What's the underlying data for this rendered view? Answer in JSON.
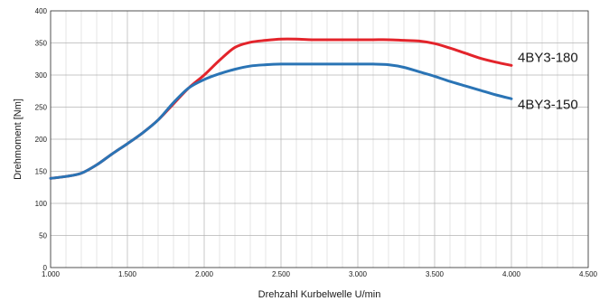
{
  "chart_data": {
    "type": "line",
    "xlabel": "Drehzahl Kurbelwelle U/min",
    "ylabel": "Drehmoment [Nm]",
    "xlim": [
      1000,
      4500
    ],
    "ylim": [
      0,
      400
    ],
    "x_ticks": [
      1000,
      1500,
      2000,
      2500,
      3000,
      3500,
      4000,
      4500
    ],
    "x_tick_labels": [
      "1.000",
      "1.500",
      "2.000",
      "2.500",
      "3.000",
      "3.500",
      "4.000",
      "4.500"
    ],
    "y_ticks": [
      0,
      50,
      100,
      150,
      200,
      250,
      300,
      350,
      400
    ],
    "y_tick_labels": [
      "0",
      "50",
      "100",
      "150",
      "200",
      "250",
      "300",
      "350",
      "400"
    ],
    "x_minor_step": 100,
    "grid": true,
    "series": [
      {
        "name": "4BY3-180",
        "color": "#e3242b",
        "x": [
          1000,
          1100,
          1200,
          1300,
          1400,
          1500,
          1600,
          1700,
          1800,
          1900,
          2000,
          2100,
          2200,
          2300,
          2400,
          2500,
          2600,
          2700,
          2800,
          2900,
          3000,
          3100,
          3200,
          3300,
          3400,
          3500,
          3600,
          3700,
          3800,
          3900,
          4000
        ],
        "y": [
          139,
          142,
          147,
          160,
          177,
          193,
          210,
          230,
          255,
          280,
          300,
          323,
          343,
          351,
          354,
          356,
          356,
          355,
          355,
          355,
          355,
          355,
          355,
          354,
          353,
          349,
          342,
          334,
          326,
          320,
          315
        ]
      },
      {
        "name": "4BY3-150",
        "color": "#2a74b5",
        "x": [
          1000,
          1100,
          1200,
          1300,
          1400,
          1500,
          1600,
          1700,
          1800,
          1900,
          2000,
          2100,
          2200,
          2300,
          2400,
          2500,
          2600,
          2700,
          2800,
          2900,
          3000,
          3100,
          3200,
          3300,
          3400,
          3500,
          3600,
          3700,
          3800,
          3900,
          4000
        ],
        "y": [
          139,
          142,
          147,
          160,
          177,
          193,
          210,
          230,
          257,
          280,
          293,
          302,
          309,
          314,
          316,
          317,
          317,
          317,
          317,
          317,
          317,
          317,
          316,
          312,
          305,
          298,
          290,
          283,
          276,
          269,
          263
        ]
      }
    ]
  }
}
